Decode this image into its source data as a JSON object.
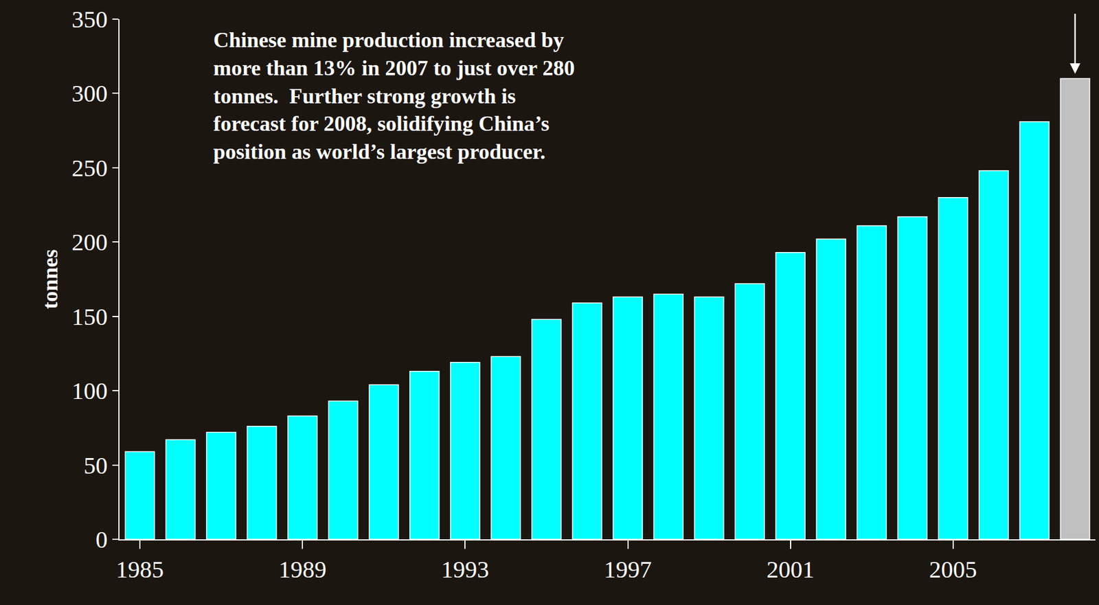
{
  "chart_data": {
    "type": "bar",
    "categories": [
      "1985",
      null,
      null,
      null,
      "1989",
      null,
      null,
      null,
      "1993",
      null,
      null,
      null,
      "1997",
      null,
      null,
      null,
      "2001",
      null,
      null,
      null,
      "2005",
      null,
      null,
      null
    ],
    "values": [
      59,
      67,
      72,
      76,
      83,
      93,
      104,
      113,
      119,
      123,
      148,
      159,
      163,
      165,
      163,
      172,
      193,
      202,
      211,
      217,
      230,
      248,
      281,
      310
    ],
    "colors": [
      "#00ffff",
      "#00ffff",
      "#00ffff",
      "#00ffff",
      "#00ffff",
      "#00ffff",
      "#00ffff",
      "#00ffff",
      "#00ffff",
      "#00ffff",
      "#00ffff",
      "#00ffff",
      "#00ffff",
      "#00ffff",
      "#00ffff",
      "#00ffff",
      "#00ffff",
      "#00ffff",
      "#00ffff",
      "#00ffff",
      "#00ffff",
      "#00ffff",
      "#00ffff",
      "#c0c0c0"
    ],
    "y_label": "tonnes",
    "ylim": [
      0,
      350
    ],
    "yticks": [
      0,
      50,
      100,
      150,
      200,
      250,
      300,
      350
    ],
    "annotations": [
      {
        "text": "Chinese mine production increased by\nmore than 13% in 2007 to just over 280\ntonnes.  Further strong growth is\nforecast for 2008, solidifying China’s\nposition as world’s largest producer."
      }
    ],
    "grid": false
  }
}
